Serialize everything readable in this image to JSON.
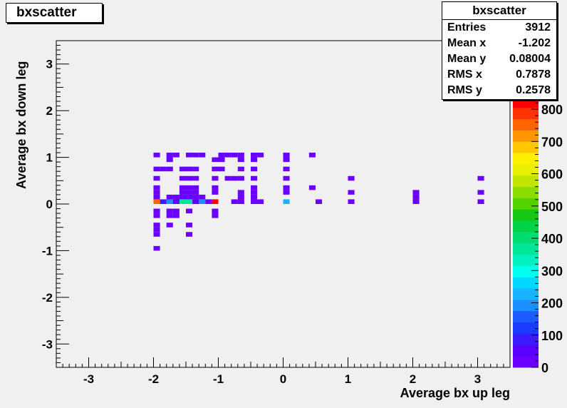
{
  "title": "bxscatter",
  "stats": {
    "title": "bxscatter",
    "rows": [
      {
        "label": "Entries",
        "value": "3912"
      },
      {
        "label": "Mean x",
        "value": "-1.202"
      },
      {
        "label": "Mean y",
        "value": "0.08004"
      },
      {
        "label": "RMS x",
        "value": "0.7878"
      },
      {
        "label": "RMS y",
        "value": "0.2578"
      }
    ]
  },
  "chart_data": {
    "type": "heatmap",
    "title": "bxscatter",
    "xlabel": "Average bx up leg",
    "ylabel": "Average bx down leg",
    "xlim": [
      -3.5,
      3.5
    ],
    "ylim": [
      -3.5,
      3.5
    ],
    "x_ticks": [
      "-3",
      "-2",
      "-1",
      "0",
      "1",
      "2",
      "3"
    ],
    "y_ticks": [
      "-3",
      "-2",
      "-1",
      "0",
      "1",
      "2",
      "3"
    ],
    "z_ticks": [
      "0",
      "100",
      "200",
      "300",
      "400",
      "500",
      "600",
      "700",
      "800"
    ],
    "zlim": [
      0,
      840
    ],
    "bin_width": 0.1,
    "cells": [
      {
        "x": -1.95,
        "y": 0.05,
        "z": 760
      },
      {
        "x": -1.05,
        "y": 0.05,
        "z": 840
      },
      {
        "x": -1.55,
        "y": 0.05,
        "z": 360
      },
      {
        "x": -1.45,
        "y": 0.05,
        "z": 360
      },
      {
        "x": -1.75,
        "y": 0.05,
        "z": 200
      },
      {
        "x": -1.25,
        "y": 0.05,
        "z": 200
      },
      {
        "x": 0.05,
        "y": 0.05,
        "z": 230
      },
      {
        "x": -1.85,
        "y": 0.05,
        "z": 80
      },
      {
        "x": -1.65,
        "y": 0.05,
        "z": 40
      },
      {
        "x": -1.35,
        "y": 0.05,
        "z": 40
      },
      {
        "x": -1.15,
        "y": 0.05,
        "z": 30
      },
      {
        "x": -0.75,
        "y": 0.05,
        "z": 20
      },
      {
        "x": -0.65,
        "y": 0.05,
        "z": 20
      },
      {
        "x": -0.45,
        "y": 0.05,
        "z": 20
      },
      {
        "x": -0.35,
        "y": 0.05,
        "z": 20
      },
      {
        "x": 0.55,
        "y": 0.05,
        "z": 20
      },
      {
        "x": 1.05,
        "y": 0.05,
        "z": 20
      },
      {
        "x": 2.05,
        "y": 0.05,
        "z": 20
      },
      {
        "x": 3.05,
        "y": 0.05,
        "z": 20
      },
      {
        "x": -1.95,
        "y": 1.05,
        "z": 15
      },
      {
        "x": -1.75,
        "y": 1.05,
        "z": 15
      },
      {
        "x": -1.65,
        "y": 1.05,
        "z": 15
      },
      {
        "x": -1.45,
        "y": 1.05,
        "z": 15
      },
      {
        "x": -1.35,
        "y": 1.05,
        "z": 15
      },
      {
        "x": -1.25,
        "y": 1.05,
        "z": 15
      },
      {
        "x": -0.95,
        "y": 1.05,
        "z": 15
      },
      {
        "x": -0.85,
        "y": 1.05,
        "z": 15
      },
      {
        "x": -0.75,
        "y": 1.05,
        "z": 15
      },
      {
        "x": -0.65,
        "y": 1.05,
        "z": 15
      },
      {
        "x": -0.45,
        "y": 1.05,
        "z": 15
      },
      {
        "x": -0.35,
        "y": 1.05,
        "z": 15
      },
      {
        "x": 0.05,
        "y": 1.05,
        "z": 15
      },
      {
        "x": 0.45,
        "y": 1.05,
        "z": 15
      },
      {
        "x": -1.75,
        "y": 0.95,
        "z": 15
      },
      {
        "x": -1.05,
        "y": 0.95,
        "z": 15
      },
      {
        "x": -0.95,
        "y": 0.95,
        "z": 15
      },
      {
        "x": -0.65,
        "y": 0.95,
        "z": 15
      },
      {
        "x": -0.45,
        "y": 0.95,
        "z": 15
      },
      {
        "x": 0.05,
        "y": 0.95,
        "z": 15
      },
      {
        "x": -1.95,
        "y": 0.75,
        "z": 15
      },
      {
        "x": -1.85,
        "y": 0.75,
        "z": 15
      },
      {
        "x": -1.75,
        "y": 0.75,
        "z": 15
      },
      {
        "x": -1.55,
        "y": 0.75,
        "z": 15
      },
      {
        "x": -1.45,
        "y": 0.75,
        "z": 15
      },
      {
        "x": -1.35,
        "y": 0.75,
        "z": 15
      },
      {
        "x": -1.05,
        "y": 0.75,
        "z": 15
      },
      {
        "x": -0.95,
        "y": 0.75,
        "z": 15
      },
      {
        "x": -0.65,
        "y": 0.75,
        "z": 15
      },
      {
        "x": -0.45,
        "y": 0.75,
        "z": 15
      },
      {
        "x": 0.05,
        "y": 0.75,
        "z": 15
      },
      {
        "x": -1.95,
        "y": 0.55,
        "z": 15
      },
      {
        "x": -1.55,
        "y": 0.55,
        "z": 15
      },
      {
        "x": -1.45,
        "y": 0.55,
        "z": 15
      },
      {
        "x": -1.35,
        "y": 0.55,
        "z": 15
      },
      {
        "x": -1.05,
        "y": 0.55,
        "z": 15
      },
      {
        "x": -0.85,
        "y": 0.55,
        "z": 15
      },
      {
        "x": -0.75,
        "y": 0.55,
        "z": 15
      },
      {
        "x": -0.65,
        "y": 0.55,
        "z": 15
      },
      {
        "x": -0.45,
        "y": 0.55,
        "z": 15
      },
      {
        "x": 0.05,
        "y": 0.55,
        "z": 15
      },
      {
        "x": 1.05,
        "y": 0.55,
        "z": 15
      },
      {
        "x": 3.05,
        "y": 0.55,
        "z": 15
      },
      {
        "x": -1.95,
        "y": 0.35,
        "z": 15
      },
      {
        "x": -1.55,
        "y": 0.35,
        "z": 15
      },
      {
        "x": -1.45,
        "y": 0.35,
        "z": 15
      },
      {
        "x": -1.35,
        "y": 0.35,
        "z": 15
      },
      {
        "x": -1.05,
        "y": 0.35,
        "z": 15
      },
      {
        "x": -0.45,
        "y": 0.35,
        "z": 15
      },
      {
        "x": 0.05,
        "y": 0.35,
        "z": 15
      },
      {
        "x": 0.45,
        "y": 0.35,
        "z": 15
      },
      {
        "x": -1.95,
        "y": 0.25,
        "z": 15
      },
      {
        "x": -1.55,
        "y": 0.25,
        "z": 15
      },
      {
        "x": -1.45,
        "y": 0.25,
        "z": 15
      },
      {
        "x": -1.35,
        "y": 0.25,
        "z": 15
      },
      {
        "x": -1.05,
        "y": 0.25,
        "z": 15
      },
      {
        "x": -0.65,
        "y": 0.25,
        "z": 15
      },
      {
        "x": -0.45,
        "y": 0.25,
        "z": 15
      },
      {
        "x": 0.05,
        "y": 0.25,
        "z": 15
      },
      {
        "x": 1.05,
        "y": 0.25,
        "z": 15
      },
      {
        "x": 2.05,
        "y": 0.25,
        "z": 15
      },
      {
        "x": 3.05,
        "y": 0.25,
        "z": 15
      },
      {
        "x": -1.95,
        "y": 0.15,
        "z": 15
      },
      {
        "x": -1.75,
        "y": 0.15,
        "z": 15
      },
      {
        "x": -1.65,
        "y": 0.15,
        "z": 15
      },
      {
        "x": -1.55,
        "y": 0.15,
        "z": 15
      },
      {
        "x": -1.45,
        "y": 0.15,
        "z": 15
      },
      {
        "x": -1.35,
        "y": 0.15,
        "z": 15
      },
      {
        "x": -1.25,
        "y": 0.15,
        "z": 15
      },
      {
        "x": -0.65,
        "y": 0.15,
        "z": 15
      },
      {
        "x": -0.45,
        "y": 0.15,
        "z": 15
      },
      {
        "x": 2.05,
        "y": 0.15,
        "z": 15
      },
      {
        "x": -1.95,
        "y": -0.15,
        "z": 15
      },
      {
        "x": -1.75,
        "y": -0.15,
        "z": 15
      },
      {
        "x": -1.65,
        "y": -0.15,
        "z": 15
      },
      {
        "x": -1.45,
        "y": -0.15,
        "z": 15
      },
      {
        "x": -1.05,
        "y": -0.15,
        "z": 15
      },
      {
        "x": -1.95,
        "y": -0.25,
        "z": 15
      },
      {
        "x": -1.75,
        "y": -0.25,
        "z": 15
      },
      {
        "x": -1.65,
        "y": -0.25,
        "z": 15
      },
      {
        "x": -1.05,
        "y": -0.25,
        "z": 15
      },
      {
        "x": -1.95,
        "y": -0.45,
        "z": 15
      },
      {
        "x": -1.75,
        "y": -0.45,
        "z": 15
      },
      {
        "x": -1.45,
        "y": -0.45,
        "z": 15
      },
      {
        "x": -1.95,
        "y": -0.55,
        "z": 15
      },
      {
        "x": -1.95,
        "y": -0.65,
        "z": 15
      },
      {
        "x": -1.45,
        "y": -0.65,
        "z": 15
      },
      {
        "x": -1.95,
        "y": -0.95,
        "z": 15
      }
    ]
  }
}
